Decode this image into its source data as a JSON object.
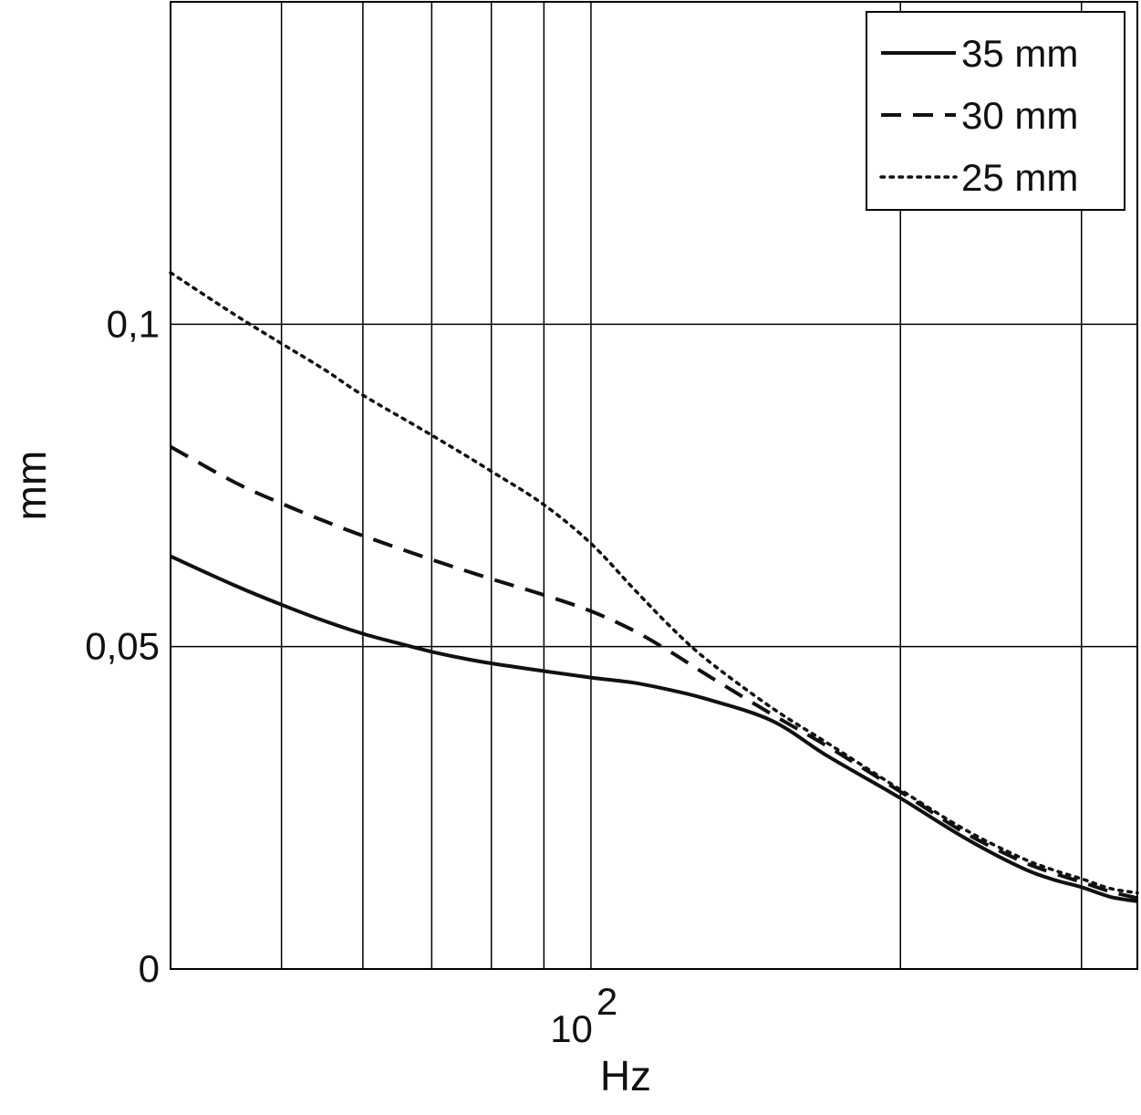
{
  "chart_data": {
    "type": "line",
    "xlabel": "Hz",
    "ylabel": "mm",
    "xscale": "log",
    "xlim": [
      39,
      340
    ],
    "ylim": [
      0,
      0.15
    ],
    "grid": true,
    "legend_position": "top-right",
    "x_tick_labels": [
      {
        "value": 100,
        "base": "10",
        "exponent": "2"
      }
    ],
    "y_ticks": [
      {
        "value": 0,
        "label": "0"
      },
      {
        "value": 0.05,
        "label": "0,05"
      },
      {
        "value": 0.1,
        "label": "0,1"
      }
    ],
    "x_gridlines": [
      50,
      60,
      70,
      80,
      90,
      100,
      200,
      300
    ],
    "y_gridlines": [
      0.05,
      0.1
    ],
    "series": [
      {
        "name": "35 mm",
        "style": "solid",
        "x": [
          39,
          45,
          50,
          55,
          60,
          65,
          70,
          75,
          80,
          90,
          100,
          110,
          120,
          130,
          150,
          170,
          200,
          230,
          260,
          280,
          300,
          320,
          340
        ],
        "y": [
          0.064,
          0.0595,
          0.0565,
          0.054,
          0.052,
          0.0505,
          0.0492,
          0.0482,
          0.0474,
          0.0462,
          0.0452,
          0.0444,
          0.0432,
          0.0418,
          0.0385,
          0.033,
          0.0265,
          0.0205,
          0.016,
          0.014,
          0.0127,
          0.0112,
          0.0105
        ]
      },
      {
        "name": "30 mm",
        "style": "dashed",
        "x": [
          39,
          45,
          50,
          55,
          60,
          70,
          80,
          90,
          100,
          110,
          120,
          130,
          150,
          170,
          200,
          230,
          260,
          280,
          300,
          320,
          340
        ],
        "y": [
          0.081,
          0.0755,
          0.0722,
          0.0695,
          0.0672,
          0.0635,
          0.0605,
          0.058,
          0.0555,
          0.0525,
          0.049,
          0.0455,
          0.0395,
          0.0345,
          0.0275,
          0.0213,
          0.017,
          0.015,
          0.0135,
          0.012,
          0.011
        ]
      },
      {
        "name": "25 mm",
        "style": "dotted",
        "x": [
          39,
          45,
          50,
          55,
          60,
          70,
          80,
          90,
          100,
          110,
          120,
          130,
          150,
          170,
          200,
          230,
          260,
          280,
          300,
          320,
          340
        ],
        "y": [
          0.108,
          0.1015,
          0.097,
          0.093,
          0.089,
          0.0828,
          0.0772,
          0.072,
          0.066,
          0.059,
          0.0528,
          0.0478,
          0.0405,
          0.035,
          0.0278,
          0.0218,
          0.0175,
          0.0155,
          0.014,
          0.0125,
          0.0118
        ]
      }
    ]
  }
}
